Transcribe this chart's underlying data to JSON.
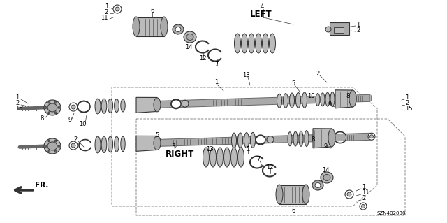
{
  "bg_color": "#ffffff",
  "diagram_code": "SZN4B2030",
  "left_label": "LEFT",
  "right_label": "RIGHT",
  "fr_label": "FR.",
  "fig_width": 6.4,
  "fig_height": 3.19,
  "dpi": 100,
  "gray_dark": "#333333",
  "gray_mid": "#666666",
  "gray_light": "#aaaaaa",
  "gray_fill": "#bbbbbb",
  "white": "#ffffff",
  "line_color": "#333333",
  "dash_color": "#888888"
}
